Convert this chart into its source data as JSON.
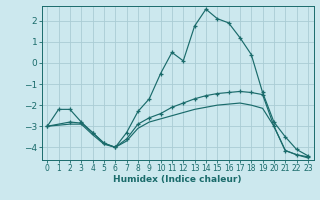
{
  "xlabel": "Humidex (Indice chaleur)",
  "bg_color": "#cce8ee",
  "grid_color": "#aaccd4",
  "line_color": "#1a6b6b",
  "xlim": [
    -0.5,
    23.5
  ],
  "ylim": [
    -4.6,
    2.7
  ],
  "yticks": [
    -4,
    -3,
    -2,
    -1,
    0,
    1,
    2
  ],
  "xticks": [
    0,
    1,
    2,
    3,
    4,
    5,
    6,
    7,
    8,
    9,
    10,
    11,
    12,
    13,
    14,
    15,
    16,
    17,
    18,
    19,
    20,
    21,
    22,
    23
  ],
  "line1_x": [
    0,
    1,
    2,
    3,
    4,
    5,
    6,
    7,
    8,
    9,
    10,
    11,
    12,
    13,
    14,
    15,
    16,
    17,
    18,
    19,
    20,
    21,
    22,
    23
  ],
  "line1_y": [
    -3.0,
    -2.2,
    -2.2,
    -2.8,
    -3.3,
    -3.8,
    -4.0,
    -3.3,
    -2.3,
    -1.7,
    -0.5,
    0.5,
    0.1,
    1.75,
    2.55,
    2.1,
    1.9,
    1.2,
    0.4,
    -1.4,
    -2.8,
    -3.5,
    -4.1,
    -4.4
  ],
  "line2_x": [
    0,
    2,
    3,
    4,
    5,
    6,
    7,
    8,
    9,
    10,
    11,
    12,
    13,
    14,
    15,
    16,
    17,
    18,
    19,
    20,
    21,
    22,
    23
  ],
  "line2_y": [
    -3.0,
    -2.8,
    -2.85,
    -3.3,
    -3.8,
    -4.0,
    -3.6,
    -2.9,
    -2.6,
    -2.4,
    -2.1,
    -1.9,
    -1.7,
    -1.55,
    -1.45,
    -1.4,
    -1.35,
    -1.4,
    -1.5,
    -3.0,
    -4.15,
    -4.35,
    -4.45
  ],
  "line3_x": [
    0,
    2,
    3,
    4,
    5,
    6,
    7,
    8,
    9,
    10,
    11,
    12,
    13,
    14,
    15,
    16,
    17,
    18,
    19,
    20,
    21,
    22,
    23
  ],
  "line3_y": [
    -3.0,
    -2.9,
    -2.9,
    -3.4,
    -3.85,
    -4.0,
    -3.7,
    -3.1,
    -2.8,
    -2.65,
    -2.5,
    -2.35,
    -2.2,
    -2.1,
    -2.0,
    -1.95,
    -1.9,
    -2.0,
    -2.15,
    -3.0,
    -4.15,
    -4.35,
    -4.5
  ]
}
